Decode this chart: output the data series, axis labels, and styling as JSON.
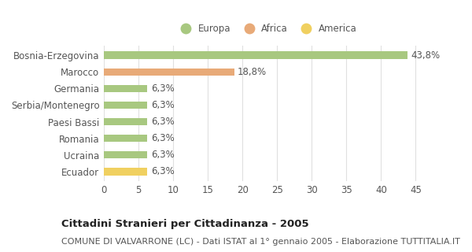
{
  "categories": [
    "Bosnia-Erzegovina",
    "Marocco",
    "Germania",
    "Serbia/Montenegro",
    "Paesi Bassi",
    "Romania",
    "Ucraina",
    "Ecuador"
  ],
  "values": [
    43.8,
    18.8,
    6.3,
    6.3,
    6.3,
    6.3,
    6.3,
    6.3
  ],
  "labels": [
    "43,8%",
    "18,8%",
    "6,3%",
    "6,3%",
    "6,3%",
    "6,3%",
    "6,3%",
    "6,3%"
  ],
  "colors": [
    "#a8c880",
    "#e8aa78",
    "#a8c880",
    "#a8c880",
    "#a8c880",
    "#a8c880",
    "#a8c880",
    "#f0d060"
  ],
  "legend_labels": [
    "Europa",
    "Africa",
    "America"
  ],
  "legend_colors": [
    "#a8c880",
    "#e8aa78",
    "#f0d060"
  ],
  "title_bold": "Cittadini Stranieri per Cittadinanza - 2005",
  "subtitle": "COMUNE DI VALVARRONE (LC) - Dati ISTAT al 1° gennaio 2005 - Elaborazione TUTTITALIA.IT",
  "xlim": [
    0,
    47
  ],
  "xticks": [
    0,
    5,
    10,
    15,
    20,
    25,
    30,
    35,
    40,
    45
  ],
  "background_color": "#ffffff",
  "grid_color": "#e0e0e0",
  "bar_height": 0.45,
  "label_fontsize": 8.5,
  "tick_fontsize": 8.5,
  "title_fontsize": 9.5,
  "subtitle_fontsize": 8,
  "text_color": "#555555"
}
